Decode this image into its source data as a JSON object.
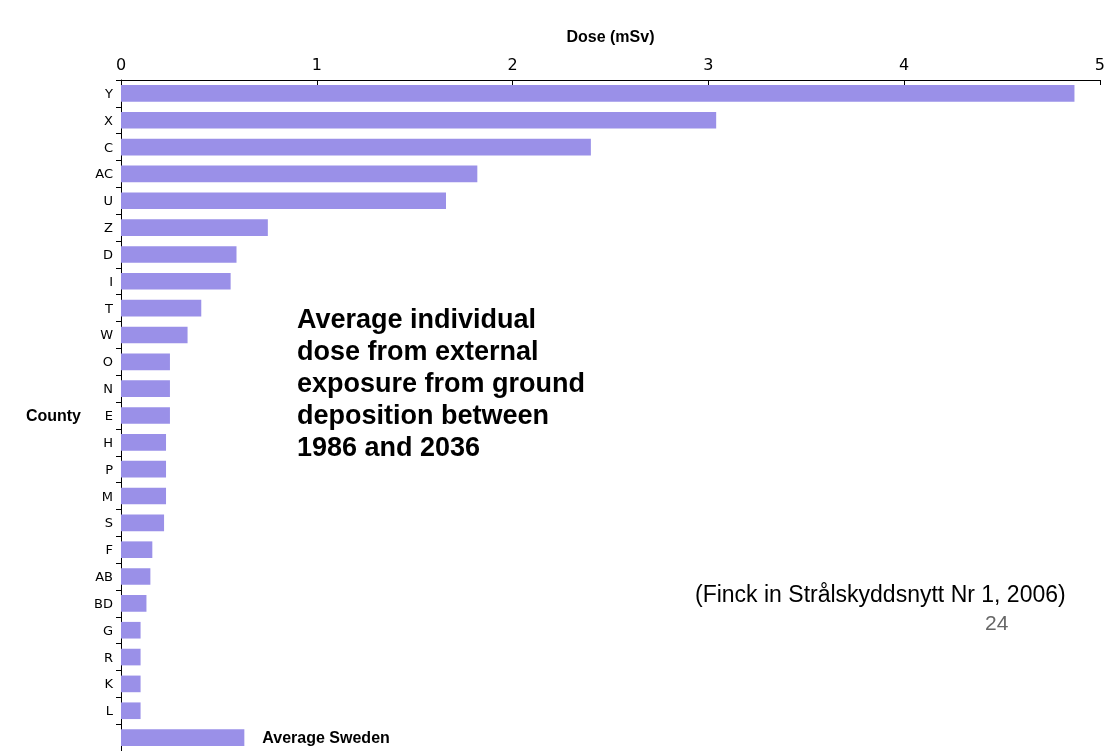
{
  "chart_data": {
    "type": "bar",
    "orientation": "horizontal",
    "title": "Average individual dose from external exposure from ground deposition between 1986 and 2036",
    "xlabel": "Dose (mSv)",
    "ylabel": "County",
    "categories": [
      "Y",
      "X",
      "C",
      "AC",
      "U",
      "Z",
      "D",
      "I",
      "T",
      "W",
      "O",
      "N",
      "E",
      "H",
      "P",
      "M",
      "S",
      "F",
      "AB",
      "BD",
      "G",
      "R",
      "K",
      "L",
      null
    ],
    "values": [
      4.87,
      3.04,
      2.4,
      1.82,
      1.66,
      0.75,
      0.59,
      0.56,
      0.41,
      0.34,
      0.25,
      0.25,
      0.25,
      0.23,
      0.23,
      0.23,
      0.22,
      0.16,
      0.15,
      0.13,
      0.1,
      0.1,
      0.1,
      0.1,
      0.63
    ],
    "color": "#9a90e8",
    "xlim": [
      0,
      5
    ],
    "xticks": [
      0,
      1,
      2,
      3,
      4,
      5
    ],
    "grid": false,
    "annotations": [
      "(Finck in Strålskyddsnytt Nr 1, 2006)",
      "24",
      {
        "text": "Average Sweden",
        "x": 0.63
      }
    ]
  }
}
